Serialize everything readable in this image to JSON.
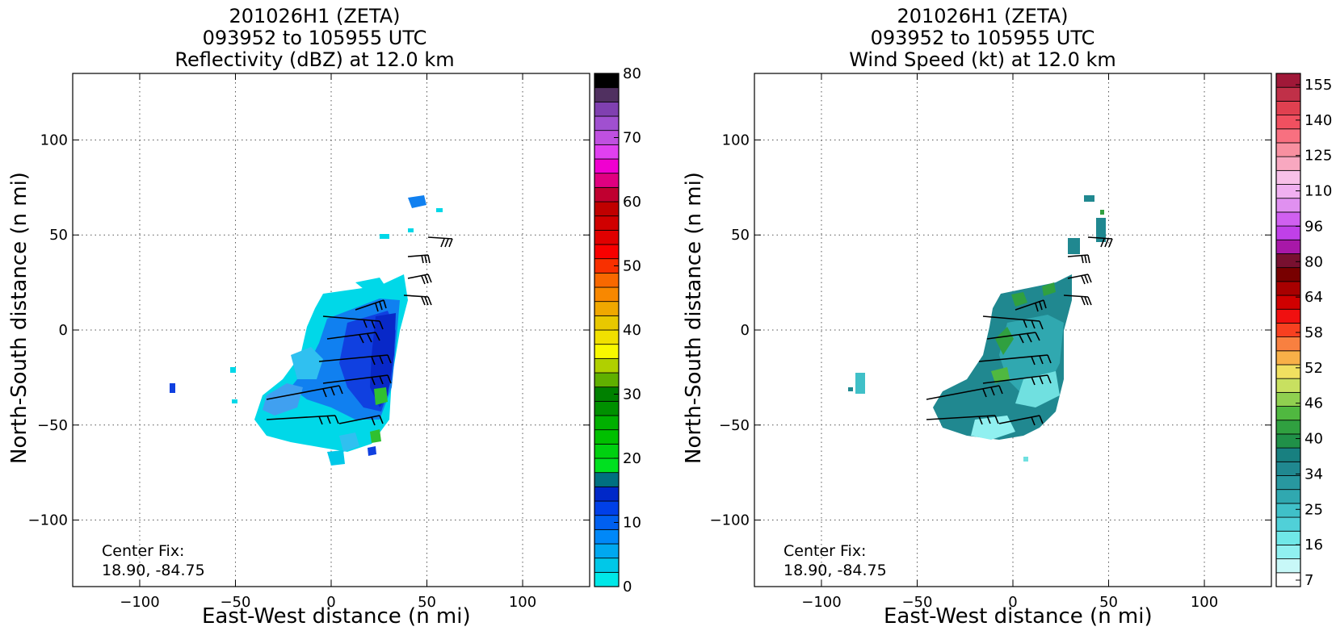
{
  "panels": [
    {
      "title_line1": "201026H1 (ZETA)",
      "title_line2": "093952 to 105955 UTC",
      "title_line3": "Reflectivity (dBZ) at 12.0 km",
      "xlabel": "East-West distance (n mi)",
      "ylabel": "North-South distance (n mi)",
      "center_fix_label": "Center Fix:",
      "center_fix_value": "18.90, -84.75",
      "colorbar_labels": [
        "80",
        "70",
        "60",
        "50",
        "40",
        "30",
        "20",
        "10",
        "0"
      ],
      "colorbar_colors": [
        "#00e8e8",
        "#00c8e8",
        "#00a8f0",
        "#0088f8",
        "#0060f0",
        "#0040e8",
        "#0028c8",
        "#007080",
        "#00e020",
        "#00d010",
        "#00c000",
        "#00b000",
        "#009000",
        "#008000",
        "#60b000",
        "#b0d000",
        "#f8f800",
        "#f0e000",
        "#e8c800",
        "#f0a800",
        "#f88800",
        "#f86800",
        "#f83000",
        "#f80000",
        "#e00000",
        "#d00000",
        "#c00000",
        "#c00030",
        "#e00080",
        "#f000d0",
        "#e040f0",
        "#c050e0",
        "#a050d0",
        "#8040b0",
        "#503060",
        "#000000"
      ]
    },
    {
      "title_line1": "201026H1 (ZETA)",
      "title_line2": "093952 to 105955 UTC",
      "title_line3": "Wind Speed (kt) at 12.0 km",
      "xlabel": "East-West distance (n mi)",
      "ylabel": "North-South distance (n mi)",
      "center_fix_label": "Center Fix:",
      "center_fix_value": "18.90, -84.75",
      "colorbar_labels": [
        "155",
        "140",
        "125",
        "110",
        "96",
        "80",
        "64",
        "58",
        "52",
        "46",
        "40",
        "34",
        "25",
        "16",
        "7"
      ],
      "colorbar_colors": [
        "#ffffff",
        "#c8f8f8",
        "#90f0f0",
        "#70e8e8",
        "#50d0d8",
        "#40c0c8",
        "#30a8b0",
        "#2898a0",
        "#208890",
        "#188080",
        "#209048",
        "#30a040",
        "#50b840",
        "#90d050",
        "#c8e060",
        "#f0e060",
        "#f8b048",
        "#f88040",
        "#f84020",
        "#f01010",
        "#d00000",
        "#a80000",
        "#780000",
        "#781030",
        "#a818a8",
        "#c040e8",
        "#d060f0",
        "#e090f0",
        "#f0b0f0",
        "#f8c0e8",
        "#f8a8c0",
        "#f890a0",
        "#f87080",
        "#f05060",
        "#e04050",
        "#c03048",
        "#a01838"
      ]
    }
  ],
  "chart_data": [
    {
      "type": "heatmap",
      "title": "201026H1 (ZETA) 093952 to 105955 UTC Reflectivity (dBZ) at 12.0 km",
      "xlabel": "East-West distance (n mi)",
      "ylabel": "North-South distance (n mi)",
      "xlim": [
        -135,
        135
      ],
      "ylim": [
        -135,
        135
      ],
      "xticks": [
        -100,
        -50,
        0,
        50,
        100
      ],
      "yticks": [
        100,
        50,
        0,
        -50,
        -100
      ],
      "grid": true,
      "colorbar": {
        "label": "dBZ",
        "range": [
          0,
          80
        ],
        "ticks": [
          0,
          10,
          20,
          30,
          40,
          50,
          60,
          70,
          80
        ]
      },
      "center_fix": [
        18.9,
        -84.75
      ]
    },
    {
      "type": "heatmap",
      "title": "201026H1 (ZETA) 093952 to 105955 UTC Wind Speed (kt) at 12.0 km",
      "xlabel": "East-West distance (n mi)",
      "ylabel": "North-South distance (n mi)",
      "xlim": [
        -135,
        135
      ],
      "ylim": [
        -135,
        135
      ],
      "xticks": [
        -100,
        -50,
        0,
        50,
        100
      ],
      "yticks": [
        100,
        50,
        0,
        -50,
        -100
      ],
      "grid": true,
      "colorbar": {
        "label": "kt",
        "range": [
          7,
          160
        ],
        "ticks": [
          7,
          16,
          25,
          34,
          40,
          46,
          52,
          58,
          64,
          80,
          96,
          110,
          125,
          140,
          155
        ]
      },
      "center_fix": [
        18.9,
        -84.75
      ]
    }
  ]
}
